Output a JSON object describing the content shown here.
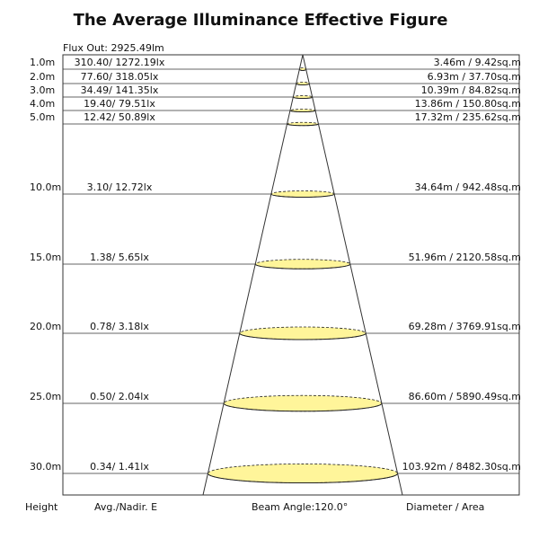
{
  "title": "The Average Illuminance Effective Figure",
  "flux_out": "Flux Out: 2925.49lm",
  "rows": [
    {
      "height": "1.0m",
      "illuminance": "310.40/ 1272.19lx",
      "diameter_area": "3.46m / 9.42sq.m"
    },
    {
      "height": "2.0m",
      "illuminance": "77.60/ 318.05lx",
      "diameter_area": "6.93m / 37.70sq.m"
    },
    {
      "height": "3.0m",
      "illuminance": "34.49/ 141.35lx",
      "diameter_area": "10.39m / 84.82sq.m"
    },
    {
      "height": "4.0m",
      "illuminance": "19.40/ 79.51lx",
      "diameter_area": "13.86m / 150.80sq.m"
    },
    {
      "height": "5.0m",
      "illuminance": "12.42/ 50.89lx",
      "diameter_area": "17.32m / 235.62sq.m"
    },
    {
      "height": "10.0m",
      "illuminance": "3.10/ 12.72lx",
      "diameter_area": "34.64m / 942.48sq.m"
    },
    {
      "height": "15.0m",
      "illuminance": "1.38/ 5.65lx",
      "diameter_area": "51.96m / 2120.58sq.m"
    },
    {
      "height": "20.0m",
      "illuminance": "0.78/ 3.18lx",
      "diameter_area": "69.28m / 3769.91sq.m"
    },
    {
      "height": "25.0m",
      "illuminance": "0.50/ 2.04lx",
      "diameter_area": "86.60m / 5890.49sq.m"
    },
    {
      "height": "30.0m",
      "illuminance": "0.34/ 1.41lx",
      "diameter_area": "103.92m / 8482.30sq.m"
    }
  ],
  "footer": {
    "height": "Height",
    "illuminance": "Avg./Nadir. E",
    "beam_angle": "Beam Angle:120.0°",
    "diameter_area": "Diameter / Area"
  }
}
